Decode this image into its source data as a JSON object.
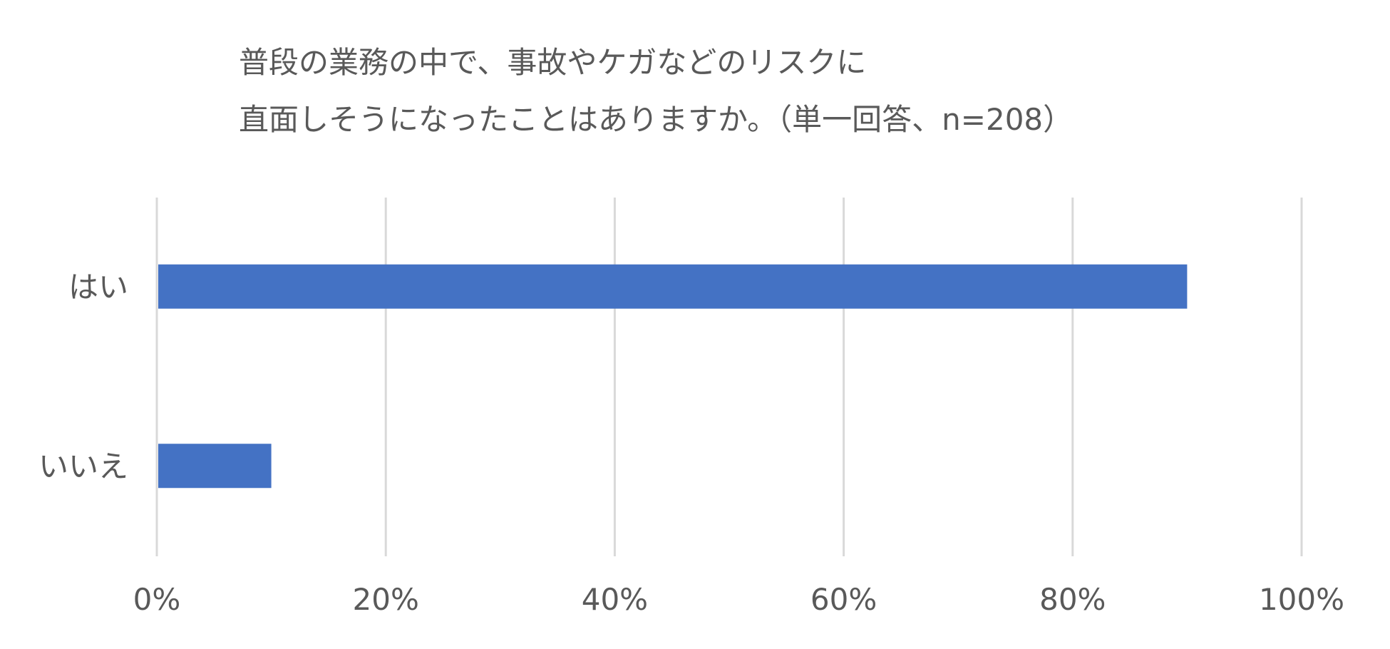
{
  "chart_data": {
    "type": "bar",
    "orientation": "horizontal",
    "title_lines": [
      "普段の業務の中で、事故やケガなどのリスクに",
      "直面しそうになったことはありますか。（単一回答、n=208）"
    ],
    "categories": [
      "はい",
      "いいえ"
    ],
    "values": [
      90,
      10
    ],
    "x_ticks": [
      "0%",
      "20%",
      "40%",
      "60%",
      "80%",
      "100%"
    ],
    "xlim": [
      0,
      100
    ],
    "grid": true,
    "legend": "none",
    "bar_color": "#4472C4",
    "grid_color": "#D9D9D9",
    "text_color": "#595959"
  }
}
